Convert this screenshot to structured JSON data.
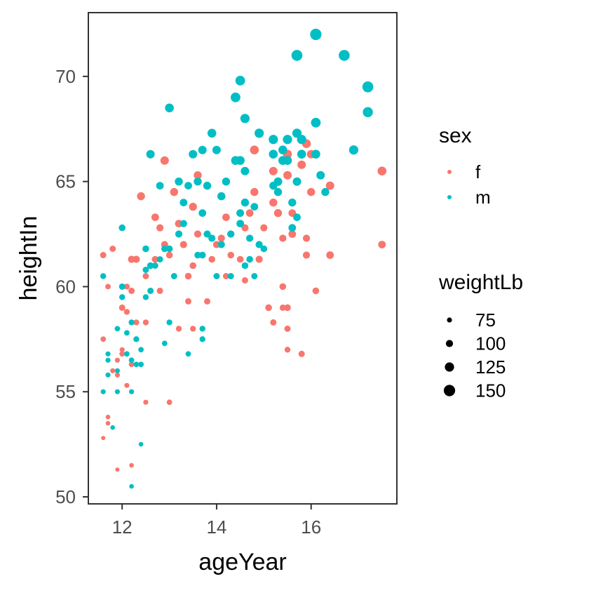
{
  "chart_data": {
    "type": "scatter",
    "xlabel": "ageYear",
    "ylabel": "heightIn",
    "xlim": [
      11.3,
      17.8
    ],
    "ylim": [
      49.7,
      73.0
    ],
    "x_ticks": [
      12,
      14,
      16
    ],
    "x_tick_labels": [
      "12",
      "14",
      "16"
    ],
    "y_ticks": [
      50,
      55,
      60,
      65,
      70
    ],
    "y_tick_labels": [
      "50",
      "55",
      "60",
      "65",
      "70"
    ],
    "grid": false,
    "legend_position": "right",
    "color_legend": {
      "title": "sex",
      "entries": [
        {
          "label": "f",
          "color": "#F8766D"
        },
        {
          "label": "m",
          "color": "#00BFC4"
        }
      ]
    },
    "size_legend": {
      "title": "weightLb",
      "entries": [
        {
          "label": "75",
          "value": 75
        },
        {
          "label": "100",
          "value": 100
        },
        {
          "label": "125",
          "value": 125
        },
        {
          "label": "150",
          "value": 150
        }
      ]
    },
    "series": [
      {
        "name": "f",
        "color": "#F8766D",
        "points": [
          [
            11.6,
            61.5,
            90
          ],
          [
            11.6,
            57.5,
            80
          ],
          [
            11.7,
            60.0,
            80
          ],
          [
            11.8,
            61.8,
            90
          ],
          [
            11.7,
            53.8,
            70
          ],
          [
            11.7,
            53.5,
            70
          ],
          [
            11.6,
            52.8,
            65
          ],
          [
            11.9,
            56.5,
            75
          ],
          [
            11.9,
            55.8,
            75
          ],
          [
            12.0,
            59.0,
            90
          ],
          [
            12.0,
            56.8,
            80
          ],
          [
            11.8,
            56.0,
            75
          ],
          [
            12.1,
            60.0,
            85
          ],
          [
            12.2,
            61.3,
            100
          ],
          [
            12.3,
            61.3,
            100
          ],
          [
            12.2,
            59.8,
            90
          ],
          [
            12.1,
            58.8,
            85
          ],
          [
            12.0,
            57.0,
            75
          ],
          [
            12.2,
            56.3,
            80
          ],
          [
            12.1,
            55.3,
            75
          ],
          [
            12.4,
            64.3,
            110
          ],
          [
            12.5,
            60.5,
            90
          ],
          [
            12.5,
            58.3,
            85
          ],
          [
            12.3,
            58.3,
            85
          ],
          [
            12.5,
            54.5,
            75
          ],
          [
            12.2,
            51.5,
            70
          ],
          [
            11.9,
            51.3,
            65
          ],
          [
            12.7,
            63.3,
            105
          ],
          [
            12.7,
            61.3,
            95
          ],
          [
            12.8,
            62.8,
            100
          ],
          [
            12.9,
            66.0,
            115
          ],
          [
            12.9,
            62.0,
            100
          ],
          [
            13.0,
            61.5,
            95
          ],
          [
            12.8,
            59.8,
            90
          ],
          [
            13.0,
            54.5,
            80
          ],
          [
            13.1,
            64.5,
            110
          ],
          [
            13.2,
            63.0,
            105
          ],
          [
            13.3,
            62.0,
            100
          ],
          [
            13.4,
            60.5,
            95
          ],
          [
            13.4,
            59.3,
            90
          ],
          [
            13.2,
            58.0,
            85
          ],
          [
            13.6,
            65.3,
            110
          ],
          [
            13.5,
            63.8,
            110
          ],
          [
            13.6,
            62.5,
            100
          ],
          [
            13.5,
            61.0,
            95
          ],
          [
            13.7,
            61.5,
            95
          ],
          [
            13.5,
            58.0,
            85
          ],
          [
            13.8,
            59.3,
            90
          ],
          [
            13.9,
            61.3,
            95
          ],
          [
            14.0,
            62.0,
            100
          ],
          [
            14.1,
            62.3,
            100
          ],
          [
            14.2,
            63.3,
            105
          ],
          [
            14.1,
            64.3,
            110
          ],
          [
            14.2,
            60.5,
            90
          ],
          [
            14.3,
            62.5,
            100
          ],
          [
            14.3,
            61.5,
            95
          ],
          [
            14.4,
            66.0,
            115
          ],
          [
            14.5,
            63.5,
            105
          ],
          [
            14.5,
            61.3,
            95
          ],
          [
            14.6,
            60.3,
            90
          ],
          [
            14.6,
            62.8,
            100
          ],
          [
            14.7,
            63.5,
            105
          ],
          [
            14.8,
            64.5,
            110
          ],
          [
            14.8,
            66.5,
            120
          ],
          [
            14.9,
            61.3,
            100
          ],
          [
            15.0,
            62.8,
            100
          ],
          [
            15.1,
            59.0,
            95
          ],
          [
            15.2,
            65.5,
            115
          ],
          [
            15.2,
            64.0,
            110
          ],
          [
            15.3,
            63.5,
            110
          ],
          [
            15.4,
            62.3,
            100
          ],
          [
            15.2,
            58.3,
            90
          ],
          [
            15.5,
            66.3,
            120
          ],
          [
            15.5,
            65.3,
            115
          ],
          [
            15.5,
            59.0,
            95
          ],
          [
            15.5,
            58.0,
            90
          ],
          [
            15.6,
            63.5,
            105
          ],
          [
            15.6,
            62.5,
            105
          ],
          [
            15.8,
            65.8,
            115
          ],
          [
            15.9,
            66.8,
            120
          ],
          [
            15.8,
            66.3,
            115
          ],
          [
            15.9,
            62.3,
            100
          ],
          [
            15.9,
            61.5,
            100
          ],
          [
            16.0,
            64.5,
            110
          ],
          [
            16.1,
            59.8,
            95
          ],
          [
            15.8,
            56.8,
            90
          ],
          [
            16.4,
            64.8,
            115
          ],
          [
            16.4,
            61.5,
            105
          ],
          [
            17.5,
            65.5,
            120
          ],
          [
            17.5,
            62.0,
            105
          ],
          [
            15.5,
            57.0,
            85
          ],
          [
            15.4,
            60.0,
            95
          ],
          [
            15.4,
            59.0,
            90
          ],
          [
            16.0,
            66.3,
            115
          ]
        ]
      },
      {
        "name": "m",
        "color": "#00BFC4",
        "points": [
          [
            11.6,
            60.5,
            85
          ],
          [
            11.6,
            55.0,
            75
          ],
          [
            11.7,
            56.8,
            75
          ],
          [
            11.7,
            56.5,
            75
          ],
          [
            11.7,
            55.8,
            75
          ],
          [
            11.8,
            53.3,
            70
          ],
          [
            11.9,
            58.0,
            80
          ],
          [
            11.9,
            56.0,
            75
          ],
          [
            11.9,
            55.0,
            75
          ],
          [
            12.0,
            62.8,
            95
          ],
          [
            12.0,
            60.0,
            90
          ],
          [
            12.0,
            59.5,
            85
          ],
          [
            12.1,
            57.8,
            80
          ],
          [
            12.1,
            56.8,
            80
          ],
          [
            12.2,
            56.5,
            80
          ],
          [
            12.2,
            55.0,
            75
          ],
          [
            12.2,
            58.3,
            85
          ],
          [
            12.3,
            57.5,
            85
          ],
          [
            12.3,
            56.3,
            80
          ],
          [
            12.4,
            57.0,
            80
          ],
          [
            12.4,
            56.3,
            80
          ],
          [
            12.4,
            52.5,
            70
          ],
          [
            12.2,
            50.5,
            70
          ],
          [
            12.5,
            61.8,
            95
          ],
          [
            12.5,
            60.8,
            90
          ],
          [
            12.5,
            59.5,
            85
          ],
          [
            12.6,
            61.0,
            95
          ],
          [
            12.6,
            59.8,
            90
          ],
          [
            12.6,
            66.3,
            115
          ],
          [
            12.7,
            61.0,
            90
          ],
          [
            12.8,
            64.8,
            105
          ],
          [
            12.8,
            61.3,
            90
          ],
          [
            12.9,
            61.8,
            95
          ],
          [
            12.9,
            57.3,
            80
          ],
          [
            13.0,
            68.5,
            120
          ],
          [
            13.0,
            61.8,
            95
          ],
          [
            13.0,
            58.3,
            85
          ],
          [
            13.1,
            60.5,
            90
          ],
          [
            13.2,
            65.0,
            110
          ],
          [
            13.2,
            62.5,
            100
          ],
          [
            13.3,
            64.0,
            105
          ],
          [
            13.3,
            63.0,
            100
          ],
          [
            13.4,
            64.8,
            105
          ],
          [
            13.4,
            56.8,
            80
          ],
          [
            13.5,
            66.3,
            115
          ],
          [
            13.6,
            65.0,
            110
          ],
          [
            13.6,
            61.5,
            95
          ],
          [
            13.7,
            66.5,
            115
          ],
          [
            13.7,
            63.5,
            105
          ],
          [
            13.7,
            61.5,
            95
          ],
          [
            13.7,
            58.0,
            85
          ],
          [
            13.7,
            57.5,
            85
          ],
          [
            13.8,
            64.8,
            110
          ],
          [
            13.8,
            62.5,
            100
          ],
          [
            13.9,
            67.3,
            120
          ],
          [
            13.9,
            62.3,
            100
          ],
          [
            14.0,
            66.5,
            115
          ],
          [
            14.0,
            60.5,
            90
          ],
          [
            14.1,
            64.3,
            110
          ],
          [
            14.1,
            62.0,
            100
          ],
          [
            14.2,
            65.0,
            110
          ],
          [
            14.3,
            62.5,
            100
          ],
          [
            14.3,
            60.5,
            90
          ],
          [
            14.4,
            69.0,
            130
          ],
          [
            14.4,
            66.0,
            120
          ],
          [
            14.5,
            69.8,
            130
          ],
          [
            14.5,
            66.0,
            120
          ],
          [
            14.5,
            63.5,
            105
          ],
          [
            14.5,
            63.0,
            105
          ],
          [
            14.6,
            68.0,
            125
          ],
          [
            14.6,
            65.5,
            115
          ],
          [
            14.6,
            64.0,
            110
          ],
          [
            14.6,
            61.0,
            95
          ],
          [
            14.7,
            62.3,
            100
          ],
          [
            14.7,
            61.3,
            95
          ],
          [
            14.8,
            63.8,
            105
          ],
          [
            14.8,
            60.5,
            90
          ],
          [
            14.9,
            67.3,
            125
          ],
          [
            14.9,
            62.0,
            100
          ],
          [
            15.0,
            61.8,
            95
          ],
          [
            15.2,
            67.0,
            125
          ],
          [
            15.2,
            66.3,
            120
          ],
          [
            15.2,
            64.8,
            110
          ],
          [
            15.3,
            65.0,
            115
          ],
          [
            15.3,
            64.5,
            110
          ],
          [
            15.4,
            66.5,
            120
          ],
          [
            15.4,
            66.0,
            120
          ],
          [
            15.5,
            67.0,
            125
          ],
          [
            15.5,
            66.0,
            120
          ],
          [
            15.6,
            64.0,
            110
          ],
          [
            15.6,
            62.8,
            105
          ],
          [
            15.7,
            71.0,
            145
          ],
          [
            15.7,
            67.3,
            125
          ],
          [
            15.7,
            65.0,
            115
          ],
          [
            15.7,
            63.3,
            105
          ],
          [
            15.8,
            67.0,
            125
          ],
          [
            15.8,
            66.3,
            120
          ],
          [
            16.1,
            72.0,
            150
          ],
          [
            16.1,
            67.8,
            130
          ],
          [
            16.1,
            66.3,
            120
          ],
          [
            16.2,
            65.3,
            115
          ],
          [
            16.3,
            64.5,
            110
          ],
          [
            16.7,
            71.0,
            145
          ],
          [
            16.9,
            66.5,
            125
          ],
          [
            17.2,
            69.5,
            145
          ],
          [
            17.2,
            68.3,
            135
          ]
        ]
      }
    ]
  }
}
